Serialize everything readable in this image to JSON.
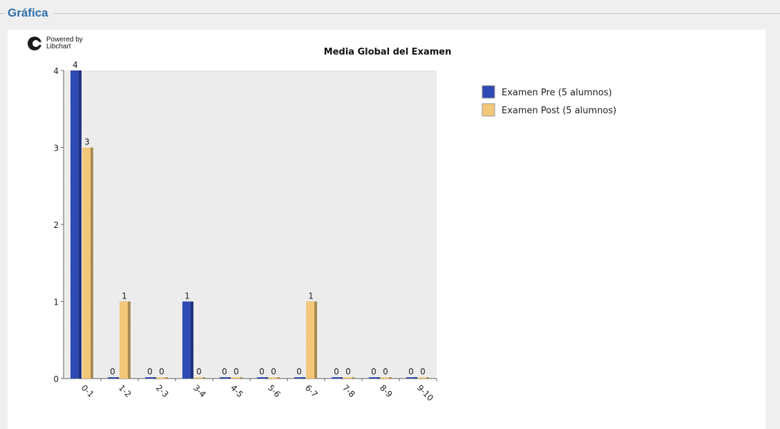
{
  "section": {
    "title": "Gráfica"
  },
  "branding": {
    "powered_line1": "Powered by",
    "powered_line2": "Libchart",
    "icon": "libchart-logo-icon"
  },
  "chart_data": {
    "type": "bar",
    "title": "Media Global del Examen",
    "xlabel": "",
    "ylabel": "",
    "categories": [
      "0-1",
      "1-2",
      "2-3",
      "3-4",
      "4-5",
      "5-6",
      "6-7",
      "7-8",
      "8-9",
      "9-10"
    ],
    "series": [
      {
        "name": "Examen Pre (5 alumnos)",
        "color": "#2f49b4",
        "values": [
          4,
          0,
          0,
          1,
          0,
          0,
          0,
          0,
          0,
          0
        ]
      },
      {
        "name": "Examen Post (5 alumnos)",
        "color": "#f2c77a",
        "values": [
          3,
          1,
          0,
          0,
          0,
          0,
          1,
          0,
          0,
          0
        ]
      }
    ],
    "ylim": [
      0,
      4
    ],
    "yticks": [
      0,
      1,
      2,
      3,
      4
    ],
    "grid": true,
    "legend": "right",
    "data_labels": true
  }
}
